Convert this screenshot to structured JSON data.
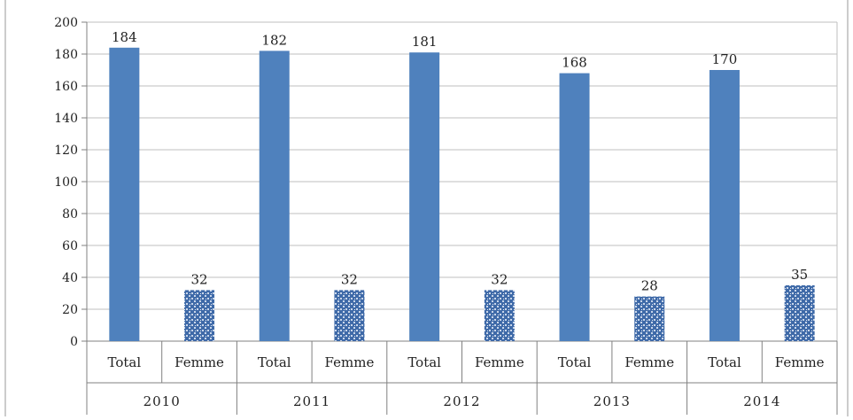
{
  "chart_data": {
    "type": "bar",
    "title": "",
    "xlabel": "",
    "ylabel": "",
    "ylim": [
      0,
      200
    ],
    "yticks": [
      0,
      20,
      40,
      60,
      80,
      100,
      120,
      140,
      160,
      180,
      200
    ],
    "grid": true,
    "legend": "none",
    "groups": [
      {
        "label": "2010",
        "bars": [
          {
            "label": "Total",
            "value": 184,
            "style": "solid"
          },
          {
            "label": "Femme",
            "value": 32,
            "style": "pattern"
          }
        ]
      },
      {
        "label": "2011",
        "bars": [
          {
            "label": "Total",
            "value": 182,
            "style": "solid"
          },
          {
            "label": "Femme",
            "value": 32,
            "style": "pattern"
          }
        ]
      },
      {
        "label": "2012",
        "bars": [
          {
            "label": "Total",
            "value": 181,
            "style": "solid"
          },
          {
            "label": "Femme",
            "value": 32,
            "style": "pattern"
          }
        ]
      },
      {
        "label": "2013",
        "bars": [
          {
            "label": "Total",
            "value": 168,
            "style": "solid"
          },
          {
            "label": "Femme",
            "value": 28,
            "style": "pattern"
          }
        ]
      },
      {
        "label": "2014",
        "bars": [
          {
            "label": "Total",
            "value": 170,
            "style": "solid"
          },
          {
            "label": "Femme",
            "value": 35,
            "style": "pattern"
          }
        ]
      }
    ],
    "colors": {
      "total": "#4f81bd",
      "femme_base": "#3f6aa8",
      "femme_light": "#c9d6ea",
      "grid": "#bfbfbf",
      "axis": "#808080"
    }
  }
}
